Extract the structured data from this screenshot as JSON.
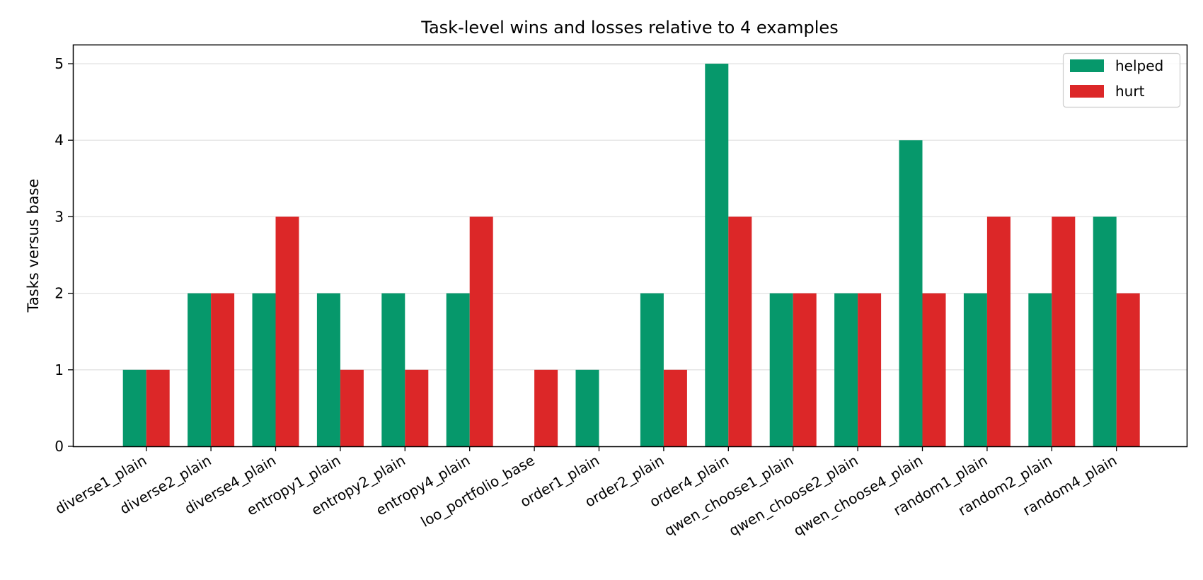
{
  "chart_data": {
    "type": "bar",
    "title": "Task-level wins and losses relative to 4 examples",
    "xlabel": "",
    "ylabel": "Tasks versus base",
    "ylim": [
      0,
      5.25
    ],
    "yticks": [
      0,
      1,
      2,
      3,
      4,
      5
    ],
    "grid": "horizontal",
    "legend_position": "top-right",
    "categories": [
      "diverse1_plain",
      "diverse2_plain",
      "diverse4_plain",
      "entropy1_plain",
      "entropy2_plain",
      "entropy4_plain",
      "loo_portfolio_base",
      "order1_plain",
      "order2_plain",
      "order4_plain",
      "qwen_choose1_plain",
      "qwen_choose2_plain",
      "qwen_choose4_plain",
      "random1_plain",
      "random2_plain",
      "random4_plain"
    ],
    "series": [
      {
        "name": "helped",
        "color": "#06986b",
        "values": [
          1,
          2,
          2,
          2,
          2,
          2,
          0,
          1,
          2,
          5,
          2,
          2,
          4,
          2,
          2,
          3
        ]
      },
      {
        "name": "hurt",
        "color": "#dc2728",
        "values": [
          1,
          2,
          3,
          1,
          1,
          3,
          1,
          0,
          1,
          3,
          2,
          2,
          2,
          3,
          3,
          2
        ]
      }
    ]
  }
}
